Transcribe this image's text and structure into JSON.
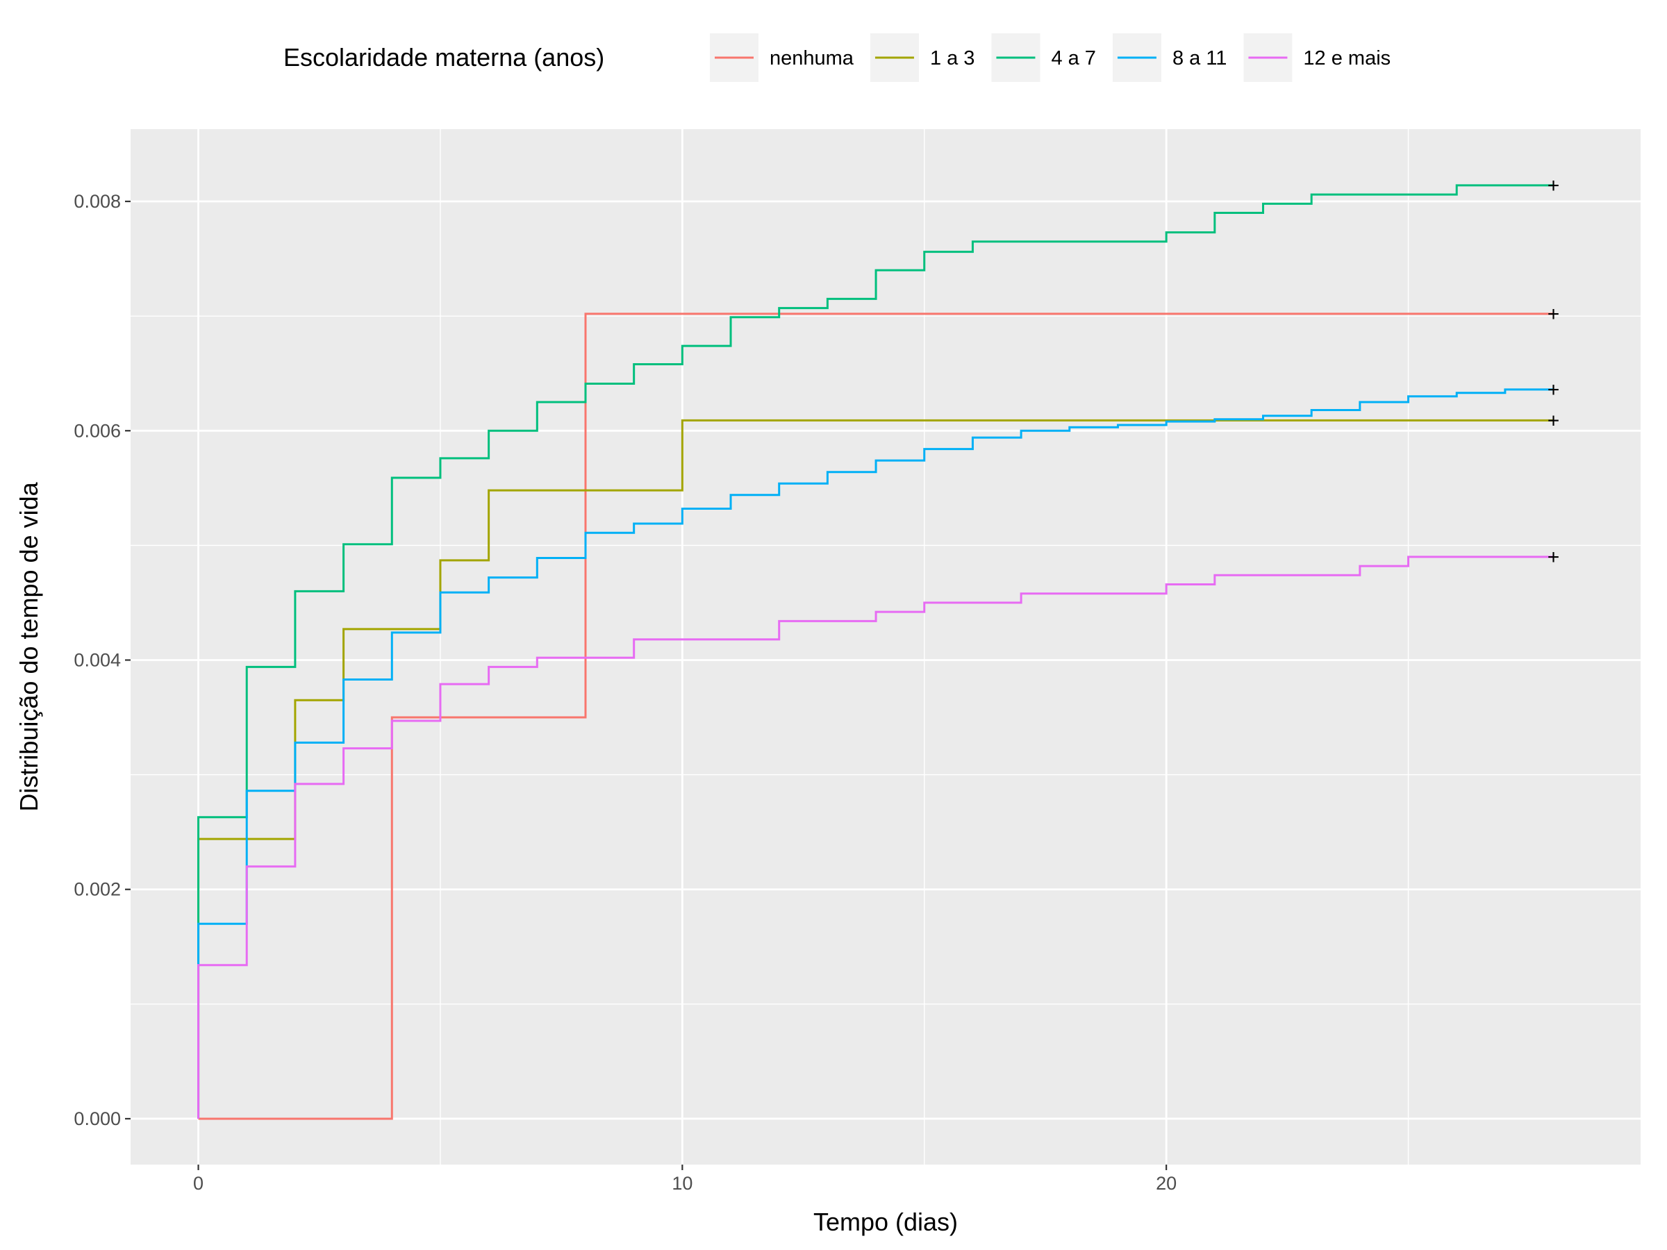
{
  "chart_data": {
    "type": "line",
    "step": true,
    "xlabel": "Tempo (dias)",
    "ylabel": "Distribuição do tempo de vida",
    "xlim": [
      -1.4,
      29.8
    ],
    "ylim": [
      -0.0004,
      0.00863
    ],
    "x_ticks": [
      0,
      10,
      20
    ],
    "x_tick_labels": [
      "0",
      "10",
      "20"
    ],
    "y_ticks": [
      0.0,
      0.002,
      0.004,
      0.006,
      0.008
    ],
    "y_tick_labels": [
      "0.000",
      "0.002",
      "0.004",
      "0.006",
      "0.008"
    ],
    "grid": true,
    "legend": {
      "title": "Escolaridade materna (anos)",
      "position": "top"
    },
    "censor_marker": "+",
    "series": [
      {
        "name": "nenhuma",
        "color": "#F8766D",
        "x": [
          0,
          4,
          8,
          28
        ],
        "y": [
          0.0,
          0.0035,
          0.00702,
          0.00702
        ]
      },
      {
        "name": "1 a 3",
        "color": "#A3A500",
        "x": [
          0,
          2,
          3,
          5,
          6,
          10,
          28
        ],
        "y": [
          0.00244,
          0.00365,
          0.00427,
          0.00487,
          0.00548,
          0.00609,
          0.00609
        ]
      },
      {
        "name": "4 a 7",
        "color": "#00BF7D",
        "x": [
          0,
          1,
          2,
          3,
          4,
          5,
          6,
          7,
          8,
          9,
          10,
          11,
          12,
          13,
          14,
          15,
          16,
          17,
          20,
          21,
          22,
          23,
          24,
          25,
          26,
          28
        ],
        "y": [
          0.00263,
          0.00394,
          0.0046,
          0.00501,
          0.00559,
          0.00576,
          0.006,
          0.00625,
          0.00641,
          0.00658,
          0.00674,
          0.00699,
          0.00707,
          0.00715,
          0.0074,
          0.00756,
          0.00765,
          0.00765,
          0.00773,
          0.0079,
          0.00798,
          0.00806,
          0.00806,
          0.00806,
          0.00814,
          0.00814
        ]
      },
      {
        "name": "8 a 11",
        "color": "#00B0F6",
        "x": [
          0,
          1,
          2,
          3,
          4,
          5,
          6,
          7,
          8,
          9,
          10,
          11,
          12,
          13,
          14,
          15,
          16,
          17,
          18,
          19,
          20,
          21,
          22,
          23,
          24,
          25,
          26,
          27,
          28
        ],
        "y": [
          0.0017,
          0.00286,
          0.00328,
          0.00383,
          0.00424,
          0.00459,
          0.00472,
          0.00489,
          0.00511,
          0.00519,
          0.00532,
          0.00544,
          0.00554,
          0.00564,
          0.00574,
          0.00584,
          0.00594,
          0.006,
          0.00603,
          0.00605,
          0.00608,
          0.0061,
          0.00613,
          0.00618,
          0.00625,
          0.0063,
          0.00633,
          0.00636,
          0.00636
        ]
      },
      {
        "name": "12 e mais",
        "color": "#E76BF3",
        "x": [
          0,
          1,
          2,
          3,
          4,
          5,
          6,
          7,
          8,
          9,
          12,
          14,
          15,
          17,
          20,
          21,
          24,
          25,
          28
        ],
        "y": [
          0.00134,
          0.0022,
          0.00292,
          0.00323,
          0.00347,
          0.00379,
          0.00394,
          0.00402,
          0.00402,
          0.00418,
          0.00434,
          0.00442,
          0.0045,
          0.00458,
          0.00466,
          0.00474,
          0.00482,
          0.0049,
          0.0049
        ]
      }
    ]
  }
}
